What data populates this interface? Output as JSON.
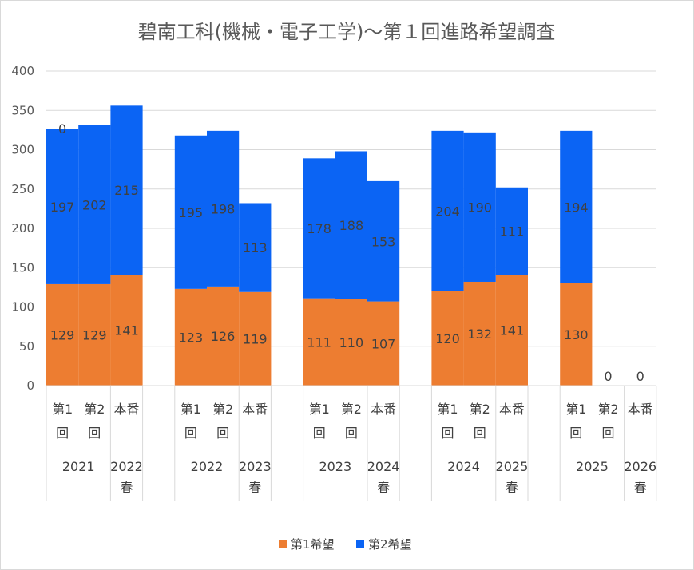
{
  "chart_data": {
    "type": "bar",
    "stacked": true,
    "title": "碧南工科(機械・電子工学)～第１回進路希望調査",
    "ylim": [
      0,
      400
    ],
    "yticks": [
      0,
      50,
      100,
      150,
      200,
      250,
      300,
      350,
      400
    ],
    "grid": true,
    "legend_position": "bottom",
    "groups": [
      {
        "year": "2021",
        "spring": "2022春",
        "bars": [
          "第1回",
          "第2回",
          "本番"
        ]
      },
      {
        "year": "2022",
        "spring": "2023春",
        "bars": [
          "第1回",
          "第2回",
          "本番"
        ]
      },
      {
        "year": "2023",
        "spring": "2024春",
        "bars": [
          "第1回",
          "第2回",
          "本番"
        ]
      },
      {
        "year": "2024",
        "spring": "2025春",
        "bars": [
          "第1回",
          "第2回",
          "本番"
        ]
      },
      {
        "year": "2025",
        "spring": "2026春",
        "bars": [
          "第1回",
          "第2回",
          "本番"
        ]
      }
    ],
    "series": [
      {
        "name": "第1希望",
        "color": "#ED7D31",
        "values": [
          [
            129,
            129,
            141
          ],
          [
            123,
            126,
            119
          ],
          [
            111,
            110,
            107
          ],
          [
            120,
            132,
            141
          ],
          [
            130,
            0,
            0
          ]
        ]
      },
      {
        "name": "第2希望",
        "color": "#0B64F4",
        "values": [
          [
            197,
            202,
            215
          ],
          [
            195,
            198,
            113
          ],
          [
            178,
            188,
            153
          ],
          [
            204,
            190,
            111
          ],
          [
            194,
            0,
            0
          ]
        ]
      }
    ],
    "extra_labels": [
      {
        "group": 0,
        "bar": 0,
        "text": "0"
      }
    ]
  }
}
